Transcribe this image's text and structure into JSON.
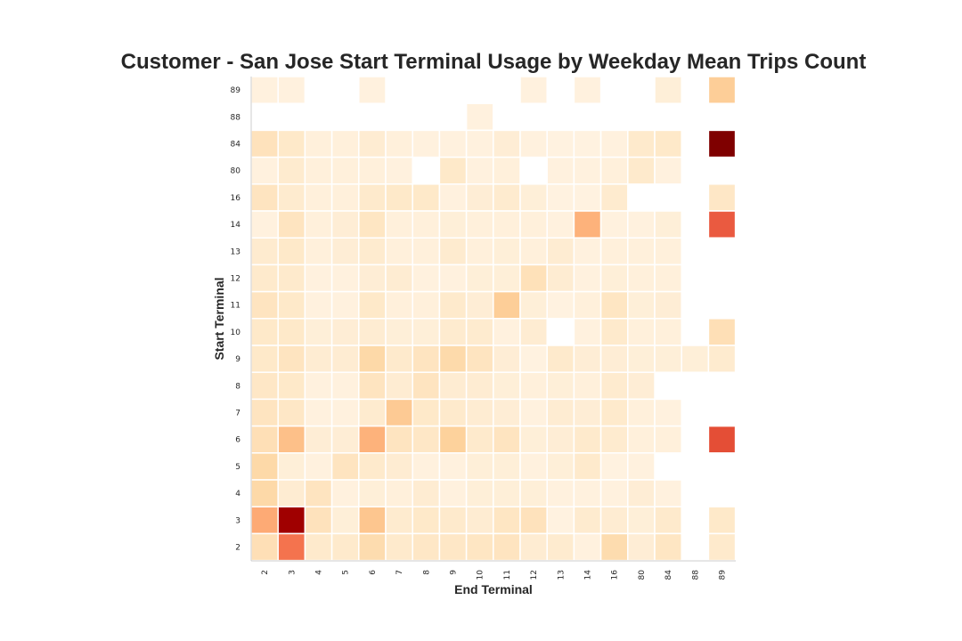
{
  "chart_data": {
    "type": "heatmap",
    "title": "Customer - San Jose Start Terminal Usage by Weekday Mean Trips Count",
    "xlabel": "End Terminal",
    "ylabel": "Start Terminal",
    "x_categories": [
      "2",
      "3",
      "4",
      "5",
      "6",
      "7",
      "8",
      "9",
      "10",
      "11",
      "12",
      "13",
      "14",
      "16",
      "80",
      "84",
      "88",
      "89"
    ],
    "y_categories": [
      "89",
      "88",
      "84",
      "80",
      "16",
      "14",
      "13",
      "12",
      "11",
      "10",
      "9",
      "8",
      "7",
      "6",
      "5",
      "4",
      "3",
      "2"
    ],
    "colormap": "OrRd",
    "color_range": [
      0,
      1
    ],
    "grid": false,
    "values": [
      [
        0.05,
        0.05,
        null,
        null,
        0.05,
        null,
        null,
        null,
        null,
        null,
        0.05,
        null,
        0.05,
        null,
        null,
        0.07,
        null,
        0.28
      ],
      [
        null,
        null,
        null,
        null,
        null,
        null,
        null,
        null,
        0.05,
        null,
        null,
        null,
        null,
        null,
        null,
        null,
        null,
        null
      ],
      [
        0.16,
        0.12,
        0.06,
        0.06,
        0.09,
        0.06,
        0.05,
        0.05,
        0.05,
        0.08,
        0.05,
        0.04,
        0.04,
        0.05,
        0.11,
        0.12,
        null,
        1.0
      ],
      [
        0.05,
        0.1,
        0.06,
        0.06,
        0.06,
        0.05,
        null,
        0.12,
        0.05,
        0.06,
        null,
        0.05,
        0.05,
        0.06,
        0.11,
        0.05,
        null,
        null
      ],
      [
        0.15,
        0.1,
        0.06,
        0.06,
        0.11,
        0.12,
        0.12,
        0.05,
        0.08,
        0.1,
        0.07,
        0.04,
        0.04,
        0.1,
        null,
        null,
        null,
        0.13
      ],
      [
        0.05,
        0.15,
        0.06,
        0.08,
        0.14,
        0.06,
        0.06,
        0.07,
        0.06,
        0.06,
        0.06,
        0.05,
        0.4,
        0.05,
        0.05,
        0.07,
        null,
        0.65
      ],
      [
        0.1,
        0.12,
        0.06,
        0.08,
        0.1,
        0.06,
        0.06,
        0.1,
        0.06,
        0.07,
        0.06,
        0.09,
        0.05,
        0.06,
        0.06,
        0.06,
        null,
        null
      ],
      [
        0.11,
        0.11,
        0.05,
        0.05,
        0.08,
        0.09,
        0.05,
        0.05,
        0.07,
        0.07,
        0.17,
        0.09,
        0.05,
        0.07,
        0.06,
        0.06,
        null,
        null
      ],
      [
        0.15,
        0.12,
        0.05,
        0.05,
        0.12,
        0.06,
        0.06,
        0.11,
        0.08,
        0.28,
        0.07,
        0.04,
        0.06,
        0.14,
        0.07,
        0.08,
        null,
        null
      ],
      [
        0.12,
        0.12,
        0.07,
        0.08,
        0.09,
        0.07,
        0.07,
        0.1,
        0.1,
        0.05,
        0.09,
        null,
        0.05,
        0.11,
        0.06,
        0.06,
        null,
        0.18
      ],
      [
        0.12,
        0.15,
        0.09,
        0.09,
        0.22,
        0.11,
        0.15,
        0.21,
        0.15,
        0.08,
        0.04,
        0.11,
        0.08,
        0.08,
        0.07,
        0.07,
        0.07,
        0.1
      ],
      [
        0.13,
        0.12,
        0.05,
        0.05,
        0.15,
        0.09,
        0.15,
        0.09,
        0.09,
        0.07,
        0.06,
        0.07,
        0.06,
        0.1,
        0.08,
        null,
        null,
        null
      ],
      [
        0.15,
        0.13,
        0.05,
        0.05,
        0.1,
        0.3,
        0.12,
        0.11,
        0.09,
        0.08,
        0.05,
        0.09,
        0.08,
        0.11,
        0.06,
        0.05,
        null,
        null
      ],
      [
        0.18,
        0.35,
        0.08,
        0.08,
        0.4,
        0.15,
        0.13,
        0.26,
        0.11,
        0.15,
        0.07,
        0.08,
        0.11,
        0.1,
        0.06,
        0.06,
        null,
        0.68
      ],
      [
        0.22,
        0.07,
        0.05,
        0.15,
        0.11,
        0.09,
        0.05,
        0.05,
        0.07,
        0.07,
        0.05,
        0.07,
        0.11,
        0.04,
        0.05,
        null,
        null,
        null
      ],
      [
        0.22,
        0.09,
        0.15,
        0.05,
        0.07,
        0.06,
        0.09,
        0.05,
        0.07,
        0.07,
        0.07,
        0.05,
        0.05,
        0.05,
        0.08,
        0.05,
        null,
        null
      ],
      [
        0.42,
        0.92,
        0.16,
        0.07,
        0.32,
        0.1,
        0.12,
        0.11,
        0.09,
        0.14,
        0.16,
        0.04,
        0.1,
        0.09,
        0.07,
        0.11,
        null,
        0.12
      ],
      [
        0.18,
        0.58,
        0.11,
        0.11,
        0.2,
        0.11,
        0.13,
        0.13,
        0.14,
        0.15,
        0.09,
        0.1,
        0.05,
        0.2,
        0.08,
        0.14,
        null,
        0.11
      ]
    ]
  }
}
